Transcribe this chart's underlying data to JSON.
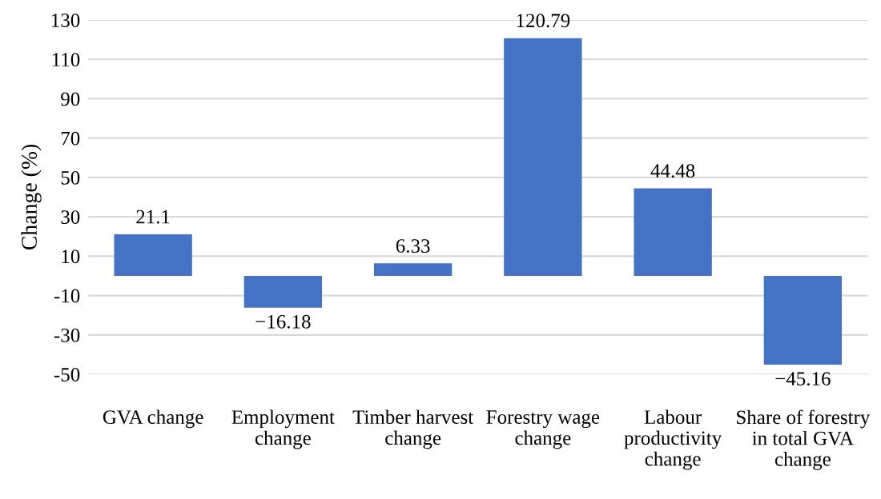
{
  "chart_data": {
    "type": "bar",
    "ylabel": "Change (%)",
    "categories": [
      "GVA change",
      "Employment\nchange",
      "Timber harvest\nchange",
      "Forestry wage\nchange",
      "Labour\nproductivity\nchange",
      "Share of forestry\nin total GVA\nchange"
    ],
    "values": [
      21.1,
      -16.18,
      6.33,
      120.79,
      44.48,
      -45.16
    ],
    "color": "#4472c4",
    "ylim": [
      -50,
      130
    ],
    "yticks": [
      -50,
      -30,
      -10,
      10,
      30,
      50,
      70,
      90,
      110,
      130
    ],
    "grid": "y",
    "data_labels": true
  }
}
